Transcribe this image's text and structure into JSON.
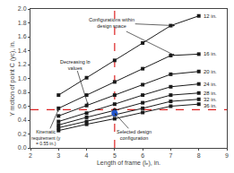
{
  "chart_data": {
    "type": "line",
    "xlabel": "Length of frame (lₑ), in.",
    "ylabel": "Y motion of point C (yᴄ), in.",
    "xlim": [
      2,
      9
    ],
    "ylim": [
      0,
      2
    ],
    "xticks": [
      2,
      3,
      4,
      5,
      6,
      7,
      8,
      9
    ],
    "yticks": [
      {
        "value": 0,
        "label": "0.0"
      },
      0.2,
      0.4,
      0.6,
      0.8,
      {
        "value": 1,
        "label": "1.0"
      },
      1.2,
      1.4,
      1.6,
      1.8,
      {
        "value": 2,
        "label": "2.0"
      }
    ],
    "grid": false,
    "color": "#1a1a1a",
    "marker": "square",
    "series": [
      {
        "name": "12 in.",
        "x": [
          3,
          4,
          5,
          6,
          7,
          8
        ],
        "values": [
          0.76,
          1.01,
          1.26,
          1.51,
          1.76,
          1.9
        ]
      },
      {
        "name": "16 in.",
        "x": [
          3,
          4,
          5,
          6,
          7,
          8
        ],
        "values": [
          0.57,
          0.76,
          0.95,
          1.14,
          1.33,
          1.35
        ]
      },
      {
        "name": "20 in.",
        "x": [
          3,
          4,
          5,
          6,
          7,
          8
        ],
        "values": [
          0.46,
          0.61,
          0.76,
          0.91,
          1.06,
          1.1
        ]
      },
      {
        "name": "24 in.",
        "x": [
          3,
          4,
          5,
          6,
          7,
          8
        ],
        "values": [
          0.38,
          0.5,
          0.63,
          0.76,
          0.88,
          0.92
        ]
      },
      {
        "name": "28 in.",
        "x": [
          3,
          4,
          5,
          6,
          7,
          8
        ],
        "values": [
          0.33,
          0.44,
          0.54,
          0.65,
          0.76,
          0.79
        ]
      },
      {
        "name": "32 in.",
        "x": [
          3,
          4,
          5,
          6,
          7,
          8
        ],
        "values": [
          0.29,
          0.38,
          0.48,
          0.57,
          0.67,
          0.7
        ]
      },
      {
        "name": "36 in.",
        "x": [
          3,
          4,
          5,
          6,
          7,
          8
        ],
        "values": [
          0.25,
          0.34,
          0.42,
          0.51,
          0.6,
          0.63
        ]
      }
    ],
    "reference_lines": {
      "x": 5.0,
      "y": 0.55,
      "color": "#dd2222"
    },
    "selected_point": {
      "x": 5.0,
      "y": 0.5,
      "color": "#2255cc"
    },
    "annotations": [
      {
        "text": "Configurations within\ndesign space",
        "x": [
          7.15,
          7.15
        ],
        "y": [
          1.76,
          1.33
        ]
      },
      {
        "text": "Decreasing lᴅ\nvalues",
        "x": [
          4.05
        ],
        "y": [
          0.62
        ]
      },
      {
        "text": "Kinematic\nrequirement (y\n= 0.55 in.)",
        "x": [
          3.0
        ],
        "y": [
          0.555
        ]
      },
      {
        "text": "Selected design\nconfiguration",
        "x": [
          5.0
        ],
        "y": [
          0.5
        ]
      }
    ]
  }
}
